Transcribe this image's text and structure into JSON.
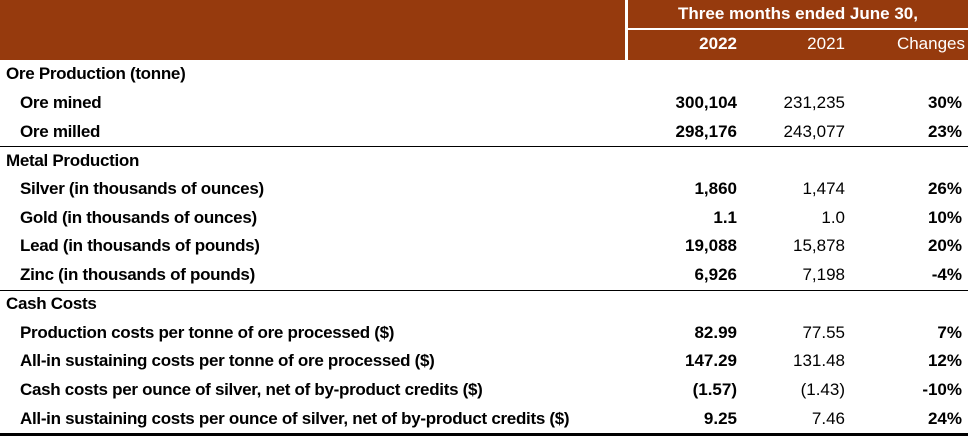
{
  "colors": {
    "header_bg": "#963A0D",
    "header_text": "#FFFFFF",
    "body_text": "#000000"
  },
  "header": {
    "col_group_title": "Three months ended June 30,",
    "columns": [
      "2022",
      "2021",
      "Changes"
    ]
  },
  "table": {
    "rows": [
      {
        "type": "section",
        "label": "Ore Production (tonne)"
      },
      {
        "type": "item",
        "label": "Ore mined",
        "v2022": "300,104",
        "v2021": "231,235",
        "change": "30%"
      },
      {
        "type": "item",
        "label": "Ore milled",
        "v2022": "298,176",
        "v2021": "243,077",
        "change": "23%"
      },
      {
        "type": "section",
        "label": "Metal Production"
      },
      {
        "type": "item",
        "label": "Silver (in thousands of ounces)",
        "v2022": "1,860",
        "v2021": "1,474",
        "change": "26%"
      },
      {
        "type": "item",
        "label": "Gold (in thousands of ounces)",
        "v2022": "1.1",
        "v2021": "1.0",
        "change": "10%"
      },
      {
        "type": "item",
        "label": "Lead (in thousands of pounds)",
        "v2022": "19,088",
        "v2021": "15,878",
        "change": "20%"
      },
      {
        "type": "item",
        "label": "Zinc (in thousands of pounds)",
        "v2022": "6,926",
        "v2021": "7,198",
        "change": "-4%"
      },
      {
        "type": "section",
        "label": "Cash Costs"
      },
      {
        "type": "item",
        "label": "Production costs per tonne of ore processed ($)",
        "v2022": "82.99",
        "v2021": "77.55",
        "change": "7%"
      },
      {
        "type": "item",
        "label": "All-in sustaining costs per tonne of ore processed ($)",
        "v2022": "147.29",
        "v2021": "131.48",
        "change": "12%"
      },
      {
        "type": "item",
        "label": "Cash costs per ounce of silver, net of by-product credits ($)",
        "v2022": "(1.57)",
        "v2021": "(1.43)",
        "change": "-10%"
      },
      {
        "type": "item",
        "label": "All-in sustaining costs per ounce of silver, net of by-product credits ($)",
        "v2022": "9.25",
        "v2021": "7.46",
        "change": "24%"
      }
    ]
  }
}
